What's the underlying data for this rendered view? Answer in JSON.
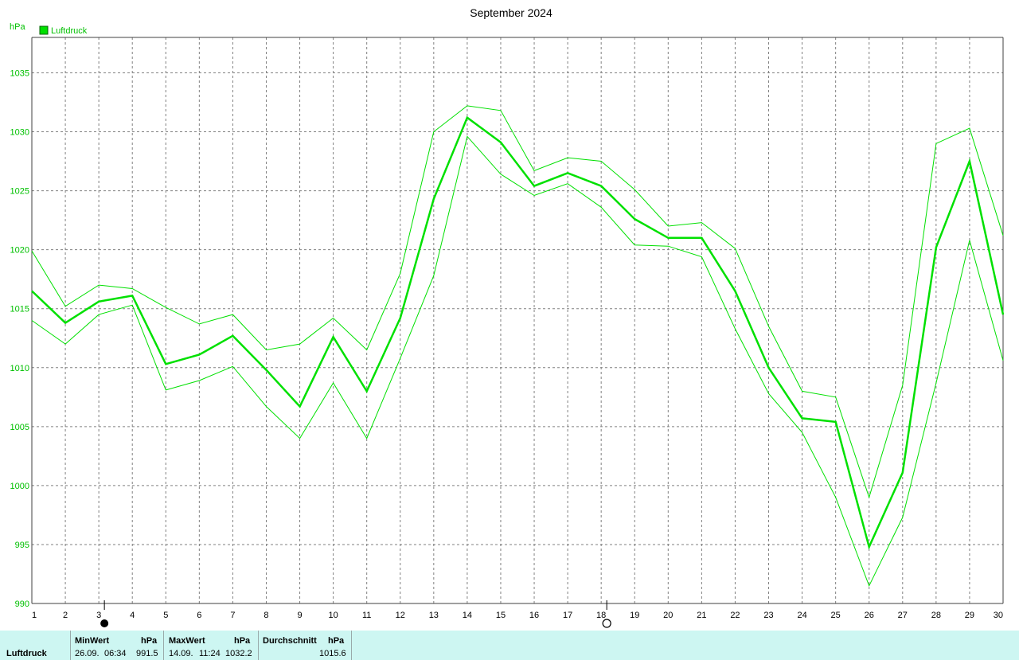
{
  "chart_data": {
    "type": "line",
    "title": "September 2024",
    "ylabel": "hPa",
    "legend": "Luftdruck",
    "legend_position": "top-left",
    "grid": true,
    "ylim": [
      990,
      1038
    ],
    "yticks": [
      990,
      995,
      1000,
      1005,
      1010,
      1015,
      1020,
      1025,
      1030,
      1035
    ],
    "x": [
      1,
      2,
      3,
      4,
      5,
      6,
      7,
      8,
      9,
      10,
      11,
      12,
      13,
      14,
      15,
      16,
      17,
      18,
      19,
      20,
      21,
      22,
      23,
      24,
      25,
      26,
      27,
      28,
      29,
      30
    ],
    "series": [
      {
        "role": "mean",
        "values": [
          1016.5,
          1013.8,
          1015.6,
          1016.1,
          1010.3,
          1011.1,
          1012.7,
          1009.8,
          1006.7,
          1012.6,
          1008.0,
          1014.2,
          1024.3,
          1031.2,
          1029.1,
          1025.4,
          1026.5,
          1025.4,
          1022.6,
          1021.0,
          1021.0,
          1016.5,
          1010.0,
          1005.7,
          1005.4,
          994.8,
          1001.1,
          1020.2,
          1027.5,
          1014.5
        ]
      },
      {
        "role": "max",
        "values": [
          1019.9,
          1015.2,
          1017.0,
          1016.7,
          1015.1,
          1013.7,
          1014.5,
          1011.5,
          1012.0,
          1014.2,
          1011.5,
          1018.0,
          1030.0,
          1032.2,
          1031.8,
          1026.7,
          1027.8,
          1027.5,
          1025.1,
          1022.0,
          1022.3,
          1020.1,
          1013.5,
          1008.0,
          1007.5,
          999.0,
          1008.5,
          1029.0,
          1030.3,
          1021.2
        ]
      },
      {
        "role": "min",
        "values": [
          1014.0,
          1012.0,
          1014.5,
          1015.3,
          1008.1,
          1008.9,
          1010.1,
          1006.7,
          1004.0,
          1008.7,
          1004.0,
          1010.8,
          1017.8,
          1029.6,
          1026.4,
          1024.6,
          1025.6,
          1023.6,
          1020.4,
          1020.3,
          1019.4,
          1013.3,
          1007.8,
          1004.5,
          999.0,
          991.5,
          997.3,
          1008.7,
          1020.8,
          1010.6
        ]
      }
    ],
    "colors": {
      "line": "#00e000",
      "grid": "#808080",
      "axis": "#404040",
      "legend_box": "#00e000"
    },
    "moon_phases": [
      {
        "day": 3,
        "phase": "new-moon"
      },
      {
        "day": 18,
        "phase": "full-moon"
      }
    ]
  },
  "footer": {
    "label": "Luftdruck",
    "min_header": "MinWert",
    "min_unit": "hPa",
    "min_date": "26.09.",
    "min_time": "06:34",
    "min_value": "991.5",
    "max_header": "MaxWert",
    "max_unit": "hPa",
    "max_date": "14.09.",
    "max_time": "11:24",
    "max_value": "1032.2",
    "avg_header": "Durchschnitt",
    "avg_unit": "hPa",
    "avg_value": "1015.6"
  },
  "background_color": "#cdf6f2"
}
